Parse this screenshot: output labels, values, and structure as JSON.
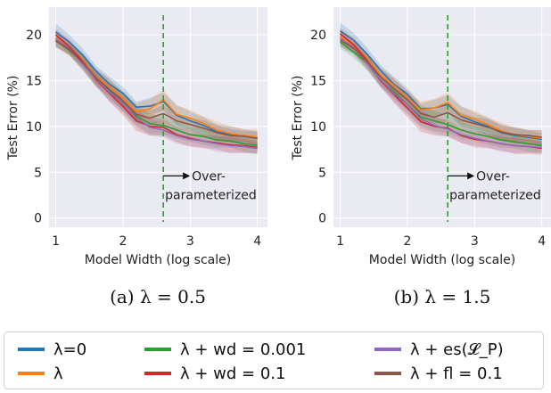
{
  "chart_data": [
    {
      "type": "line",
      "caption": "(a) λ = 0.5",
      "xlabel": "Model Width (log scale)",
      "ylabel": "Test Error (%)",
      "xlim": [
        0.9,
        4.15
      ],
      "ylim": [
        -1,
        23
      ],
      "xticks": [
        1,
        2,
        3,
        4
      ],
      "yticks": [
        0,
        5,
        10,
        15,
        20
      ],
      "grid": true,
      "x": [
        1.0,
        1.2,
        1.4,
        1.6,
        1.8,
        2.0,
        2.2,
        2.4,
        2.6,
        2.8,
        3.0,
        3.2,
        3.4,
        3.6,
        3.8,
        4.0
      ],
      "series": [
        {
          "name": "λ=0",
          "color": "#1f77b4",
          "values": [
            20.3,
            19.2,
            17.8,
            16.0,
            14.6,
            13.6,
            12.1,
            12.2,
            12.7,
            11.2,
            10.6,
            10.1,
            9.4,
            9.1,
            8.9,
            8.7
          ]
        },
        {
          "name": "λ",
          "color": "#ff7f0e",
          "values": [
            19.6,
            18.5,
            17.2,
            15.4,
            14.4,
            13.1,
            11.6,
            11.9,
            12.9,
            11.3,
            10.9,
            10.3,
            9.6,
            9.2,
            9.0,
            8.8
          ]
        },
        {
          "name": "λ + wd = 0.001",
          "color": "#2ca02c",
          "values": [
            19.4,
            18.3,
            17.0,
            15.1,
            13.9,
            12.5,
            11.1,
            10.3,
            10.1,
            9.6,
            9.1,
            8.9,
            8.5,
            8.4,
            8.1,
            7.9
          ]
        },
        {
          "name": "λ + wd = 0.1",
          "color": "#d62728",
          "values": [
            20.0,
            18.7,
            17.1,
            15.1,
            13.6,
            12.2,
            10.6,
            10.0,
            9.9,
            9.1,
            8.7,
            8.4,
            8.2,
            8.0,
            7.9,
            7.7
          ]
        },
        {
          "name": "λ + es(𝓛_P)",
          "color": "#9467bd",
          "values": [
            19.5,
            18.5,
            16.8,
            15.2,
            13.7,
            12.6,
            10.9,
            9.9,
            9.6,
            9.0,
            8.6,
            8.4,
            8.1,
            7.9,
            7.8,
            7.6
          ]
        },
        {
          "name": "λ + fl = 0.1",
          "color": "#8c564b",
          "values": [
            19.3,
            18.4,
            17.0,
            15.3,
            14.0,
            12.8,
            11.3,
            10.9,
            11.4,
            10.6,
            10.2,
            9.8,
            9.3,
            9.0,
            8.9,
            8.7
          ]
        }
      ],
      "vline": {
        "x": 2.6,
        "color": "#2ca02c",
        "style": "dashed"
      },
      "annotation": {
        "line1": "Over-",
        "line2": "parameterized"
      }
    },
    {
      "type": "line",
      "caption": "(b) λ = 1.5",
      "xlabel": "Model Width (log scale)",
      "ylabel": "Test Error (%)",
      "xlim": [
        0.9,
        4.15
      ],
      "ylim": [
        -1,
        23
      ],
      "xticks": [
        1,
        2,
        3,
        4
      ],
      "yticks": [
        0,
        5,
        10,
        15,
        20
      ],
      "grid": true,
      "x": [
        1.0,
        1.2,
        1.4,
        1.6,
        1.8,
        2.0,
        2.2,
        2.4,
        2.6,
        2.8,
        3.0,
        3.2,
        3.4,
        3.6,
        3.8,
        4.0
      ],
      "series": [
        {
          "name": "λ=0",
          "color": "#1f77b4",
          "values": [
            20.4,
            19.4,
            17.9,
            16.1,
            14.6,
            13.5,
            11.9,
            12.0,
            12.4,
            11.1,
            10.5,
            10.0,
            9.3,
            9.0,
            8.8,
            8.6
          ]
        },
        {
          "name": "λ",
          "color": "#ff7f0e",
          "values": [
            19.8,
            18.8,
            17.4,
            15.6,
            14.5,
            13.2,
            11.8,
            12.0,
            12.6,
            11.2,
            10.8,
            10.2,
            9.5,
            9.1,
            8.9,
            8.7
          ]
        },
        {
          "name": "λ + wd = 0.001",
          "color": "#2ca02c",
          "values": [
            19.2,
            18.1,
            16.9,
            15.0,
            13.8,
            12.4,
            11.0,
            10.6,
            10.2,
            9.6,
            9.2,
            8.9,
            8.5,
            8.3,
            8.1,
            7.9
          ]
        },
        {
          "name": "λ + wd = 0.1",
          "color": "#d62728",
          "values": [
            20.1,
            18.9,
            17.2,
            15.0,
            13.5,
            12.0,
            10.5,
            10.0,
            9.8,
            9.0,
            8.6,
            8.4,
            8.1,
            7.9,
            7.8,
            7.6
          ]
        },
        {
          "name": "λ + es(𝓛_P)",
          "color": "#9467bd",
          "values": [
            19.6,
            18.6,
            16.9,
            15.1,
            13.6,
            12.4,
            10.8,
            10.1,
            9.7,
            9.1,
            8.7,
            8.4,
            8.1,
            7.9,
            7.8,
            7.7
          ]
        },
        {
          "name": "λ + fl = 0.1",
          "color": "#8c564b",
          "values": [
            19.4,
            18.5,
            17.1,
            15.4,
            14.1,
            12.9,
            11.4,
            11.0,
            11.5,
            10.7,
            10.3,
            9.9,
            9.4,
            9.1,
            9.0,
            8.8
          ]
        }
      ],
      "vline": {
        "x": 2.6,
        "color": "#2ca02c",
        "style": "dashed"
      },
      "annotation": {
        "line1": "Over-",
        "line2": "parameterized"
      }
    }
  ],
  "legend": {
    "placement": "bottom",
    "entries": [
      {
        "label": "λ=0",
        "color": "#1f77b4"
      },
      {
        "label": "λ + wd = 0.001",
        "color": "#2ca02c"
      },
      {
        "label": "λ + es(𝓛_P)",
        "color": "#9467bd"
      },
      {
        "label": "λ",
        "color": "#ff7f0e"
      },
      {
        "label": "λ + wd = 0.1",
        "color": "#d62728"
      },
      {
        "label": "λ + fl = 0.1",
        "color": "#8c564b"
      }
    ]
  },
  "colors": {
    "plot_background": "#eaeaf2",
    "grid": "#ffffff"
  }
}
